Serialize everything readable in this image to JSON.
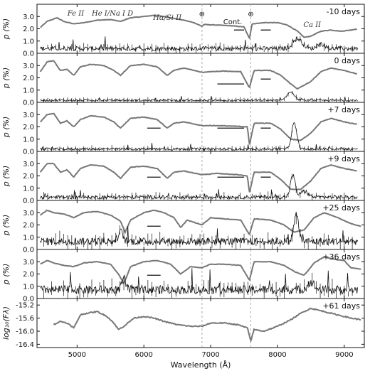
{
  "chart_data": {
    "type": "line",
    "xlabel": "Wavelength (Å)",
    "xlim": [
      4400,
      9300
    ],
    "x_ticks": [
      "5000",
      "6000",
      "7000",
      "8000",
      "9000"
    ],
    "x_tick_values": [
      5000,
      6000,
      7000,
      8000,
      9000
    ],
    "telluric_lines": [
      6870,
      7600
    ],
    "telluric_symbol": "⊕",
    "line_labels": [
      {
        "text": "Fe II",
        "x": 4980
      },
      {
        "text": "He I/Na I D",
        "x": 5530
      },
      {
        "text": "Hα/Si II",
        "x": 6350
      },
      {
        "text": "Cont.",
        "x": 7330
      },
      {
        "text": "Ca II",
        "x": 8520
      }
    ],
    "colors": {
      "flux": "#777777",
      "pol": "#111111",
      "telluric": "#aaaaaa"
    },
    "panels": [
      {
        "epoch": "-10 days",
        "ylabel": "p (%)",
        "ylim": [
          0,
          4
        ],
        "y_ticks": [
          "0.0",
          "1.0",
          "2.0",
          "3.0"
        ],
        "y_tick_values": [
          0,
          1,
          2,
          3
        ],
        "flux": [
          [
            4450,
            2.1
          ],
          [
            4550,
            2.6
          ],
          [
            4700,
            2.9
          ],
          [
            4800,
            2.6
          ],
          [
            4950,
            2.4
          ],
          [
            5100,
            2.5
          ],
          [
            5300,
            2.7
          ],
          [
            5500,
            2.75
          ],
          [
            5650,
            2.6
          ],
          [
            5800,
            2.9
          ],
          [
            6000,
            3.0
          ],
          [
            6150,
            3.1
          ],
          [
            6300,
            3.0
          ],
          [
            6450,
            2.85
          ],
          [
            6600,
            2.7
          ],
          [
            6750,
            2.5
          ],
          [
            6870,
            2.2
          ],
          [
            6900,
            2.35
          ],
          [
            7100,
            2.3
          ],
          [
            7300,
            2.25
          ],
          [
            7500,
            2.15
          ],
          [
            7580,
            1.2
          ],
          [
            7620,
            2.4
          ],
          [
            7800,
            2.5
          ],
          [
            8000,
            2.5
          ],
          [
            8150,
            2.3
          ],
          [
            8300,
            1.8
          ],
          [
            8400,
            1.3
          ],
          [
            8500,
            1.4
          ],
          [
            8650,
            1.8
          ],
          [
            8800,
            1.9
          ],
          [
            8950,
            1.8
          ],
          [
            9100,
            1.9
          ],
          [
            9200,
            2.0
          ]
        ],
        "pol_base": 0.35,
        "pol_noise": 0.35,
        "pol_peaks": [
          {
            "x": 8300,
            "h": 0.8,
            "w": 200
          },
          {
            "x": 8650,
            "h": 0.4,
            "w": 150
          }
        ],
        "cont_bands": [
          {
            "x0": 7350,
            "x1": 7500,
            "p": 1.9
          },
          {
            "x0": 7750,
            "x1": 7900,
            "p": 1.9
          }
        ]
      },
      {
        "epoch": "0 days",
        "ylabel": "p (%)",
        "ylim": [
          0,
          4
        ],
        "y_ticks": [
          "0.0",
          "1.0",
          "2.0",
          "3.0"
        ],
        "y_tick_values": [
          0,
          1,
          2,
          3
        ],
        "flux": [
          [
            4450,
            2.5
          ],
          [
            4550,
            3.3
          ],
          [
            4650,
            3.4
          ],
          [
            4750,
            2.6
          ],
          [
            4850,
            2.7
          ],
          [
            4950,
            2.2
          ],
          [
            5050,
            2.9
          ],
          [
            5200,
            3.1
          ],
          [
            5400,
            3.0
          ],
          [
            5550,
            2.6
          ],
          [
            5650,
            2.2
          ],
          [
            5800,
            3.0
          ],
          [
            6000,
            3.1
          ],
          [
            6200,
            2.9
          ],
          [
            6350,
            2.2
          ],
          [
            6450,
            2.6
          ],
          [
            6600,
            2.8
          ],
          [
            6870,
            2.45
          ],
          [
            7000,
            2.5
          ],
          [
            7200,
            2.55
          ],
          [
            7450,
            2.5
          ],
          [
            7580,
            1.2
          ],
          [
            7650,
            2.6
          ],
          [
            7900,
            2.6
          ],
          [
            8050,
            2.2
          ],
          [
            8200,
            1.5
          ],
          [
            8300,
            1.1
          ],
          [
            8500,
            1.7
          ],
          [
            8650,
            2.5
          ],
          [
            8800,
            2.8
          ],
          [
            9000,
            2.6
          ],
          [
            9200,
            2.3
          ]
        ],
        "pol_base": 0.15,
        "pol_noise": 0.15,
        "pol_peaks": [
          {
            "x": 8200,
            "h": 0.7,
            "w": 150
          }
        ],
        "cont_bands": [
          {
            "x0": 7100,
            "x1": 7500,
            "p": 1.5
          },
          {
            "x0": 7750,
            "x1": 7900,
            "p": 1.9
          }
        ]
      },
      {
        "epoch": "+7 days",
        "ylabel": "p (%)",
        "ylim": [
          0,
          4
        ],
        "y_ticks": [
          "0.0",
          "1.0",
          "2.0",
          "3.0"
        ],
        "y_tick_values": [
          0,
          1,
          2,
          3
        ],
        "flux": [
          [
            4450,
            2.4
          ],
          [
            4550,
            3.0
          ],
          [
            4650,
            3.1
          ],
          [
            4750,
            2.3
          ],
          [
            4850,
            2.5
          ],
          [
            4950,
            2.0
          ],
          [
            5050,
            2.6
          ],
          [
            5200,
            2.9
          ],
          [
            5400,
            2.8
          ],
          [
            5550,
            2.4
          ],
          [
            5650,
            1.9
          ],
          [
            5800,
            2.7
          ],
          [
            6000,
            2.8
          ],
          [
            6200,
            2.6
          ],
          [
            6350,
            1.9
          ],
          [
            6450,
            2.3
          ],
          [
            6600,
            2.4
          ],
          [
            6870,
            2.1
          ],
          [
            7100,
            2.1
          ],
          [
            7400,
            2.05
          ],
          [
            7550,
            2.0
          ],
          [
            7580,
            0.5
          ],
          [
            7650,
            2.3
          ],
          [
            7900,
            2.3
          ],
          [
            8050,
            1.8
          ],
          [
            8200,
            1.0
          ],
          [
            8350,
            0.9
          ],
          [
            8500,
            1.5
          ],
          [
            8650,
            2.4
          ],
          [
            8800,
            2.7
          ],
          [
            9000,
            2.4
          ],
          [
            9200,
            2.2
          ]
        ],
        "pol_base": 0.15,
        "pol_noise": 0.2,
        "pol_peaks": [
          {
            "x": 8250,
            "h": 2.1,
            "w": 110
          }
        ],
        "cont_bands": [
          {
            "x0": 6050,
            "x1": 6250,
            "p": 1.9
          },
          {
            "x0": 7100,
            "x1": 7500,
            "p": 1.9
          },
          {
            "x0": 7750,
            "x1": 7900,
            "p": 1.9
          }
        ]
      },
      {
        "epoch": "+9 days",
        "ylabel": "p (%)",
        "ylim": [
          0,
          4
        ],
        "y_ticks": [
          "0.0",
          "1.0",
          "2.0",
          "3.0"
        ],
        "y_tick_values": [
          0,
          1,
          2,
          3
        ],
        "flux": [
          [
            4450,
            2.3
          ],
          [
            4550,
            3.0
          ],
          [
            4650,
            3.0
          ],
          [
            4750,
            2.3
          ],
          [
            4850,
            2.5
          ],
          [
            4950,
            1.9
          ],
          [
            5050,
            2.6
          ],
          [
            5200,
            2.9
          ],
          [
            5400,
            2.8
          ],
          [
            5550,
            2.3
          ],
          [
            5650,
            1.8
          ],
          [
            5800,
            2.7
          ],
          [
            6000,
            2.8
          ],
          [
            6200,
            2.6
          ],
          [
            6350,
            1.8
          ],
          [
            6450,
            2.3
          ],
          [
            6600,
            2.4
          ],
          [
            6870,
            2.1
          ],
          [
            7100,
            2.2
          ],
          [
            7400,
            2.1
          ],
          [
            7550,
            2.0
          ],
          [
            7580,
            0.6
          ],
          [
            7650,
            2.3
          ],
          [
            7900,
            2.3
          ],
          [
            8050,
            1.7
          ],
          [
            8200,
            0.9
          ],
          [
            8350,
            0.9
          ],
          [
            8500,
            1.6
          ],
          [
            8650,
            2.6
          ],
          [
            8800,
            2.9
          ],
          [
            9000,
            2.6
          ],
          [
            9200,
            2.4
          ]
        ],
        "pol_base": 0.2,
        "pol_noise": 0.3,
        "pol_peaks": [
          {
            "x": 8230,
            "h": 1.8,
            "w": 100
          },
          {
            "x": 8400,
            "h": 0.5,
            "w": 150
          }
        ],
        "cont_bands": [
          {
            "x0": 6050,
            "x1": 6250,
            "p": 1.9
          },
          {
            "x0": 7100,
            "x1": 7500,
            "p": 1.9
          },
          {
            "x0": 7750,
            "x1": 7900,
            "p": 1.9
          }
        ]
      },
      {
        "epoch": "+25 days",
        "ylabel": "p (%)",
        "ylim": [
          0,
          4
        ],
        "y_ticks": [
          "0.0",
          "1.0",
          "2.0",
          "3.0"
        ],
        "y_tick_values": [
          0,
          1,
          2,
          3
        ],
        "flux": [
          [
            4450,
            2.8
          ],
          [
            4550,
            3.2
          ],
          [
            4650,
            3.0
          ],
          [
            4800,
            2.9
          ],
          [
            4950,
            2.6
          ],
          [
            5100,
            3.0
          ],
          [
            5300,
            3.1
          ],
          [
            5500,
            2.8
          ],
          [
            5650,
            2.3
          ],
          [
            5720,
            1.4
          ],
          [
            5800,
            2.4
          ],
          [
            6000,
            3.0
          ],
          [
            6150,
            3.2
          ],
          [
            6300,
            3.0
          ],
          [
            6450,
            2.6
          ],
          [
            6550,
            1.8
          ],
          [
            6650,
            2.4
          ],
          [
            6870,
            2.0
          ],
          [
            7000,
            2.6
          ],
          [
            7200,
            2.5
          ],
          [
            7450,
            2.4
          ],
          [
            7580,
            1.2
          ],
          [
            7650,
            2.5
          ],
          [
            7900,
            2.4
          ],
          [
            8100,
            2.0
          ],
          [
            8250,
            1.4
          ],
          [
            8400,
            1.6
          ],
          [
            8550,
            2.6
          ],
          [
            8700,
            3.0
          ],
          [
            8900,
            2.6
          ],
          [
            9100,
            2.1
          ],
          [
            9250,
            1.9
          ]
        ],
        "pol_base": 0.6,
        "pol_noise": 0.6,
        "pol_peaks": [
          {
            "x": 8280,
            "h": 2.2,
            "w": 100
          },
          {
            "x": 5650,
            "h": 0.8,
            "w": 100
          }
        ],
        "cont_bands": [
          {
            "x0": 6050,
            "x1": 6250,
            "p": 1.9
          }
        ]
      },
      {
        "epoch": "+36 days",
        "ylabel": "p (%)",
        "ylim": [
          0,
          4
        ],
        "y_ticks": [
          "0.0",
          "1.0",
          "2.0",
          "3.0"
        ],
        "y_tick_values": [
          0,
          1,
          2,
          3
        ],
        "flux": [
          [
            4450,
            2.8
          ],
          [
            4550,
            3.1
          ],
          [
            4650,
            2.9
          ],
          [
            4800,
            2.7
          ],
          [
            4950,
            2.6
          ],
          [
            5100,
            2.9
          ],
          [
            5300,
            3.0
          ],
          [
            5500,
            2.8
          ],
          [
            5620,
            2.0
          ],
          [
            5700,
            1.2
          ],
          [
            5800,
            2.6
          ],
          [
            6000,
            3.0
          ],
          [
            6200,
            3.1
          ],
          [
            6400,
            2.8
          ],
          [
            6550,
            2.0
          ],
          [
            6700,
            2.6
          ],
          [
            6870,
            2.5
          ],
          [
            7000,
            2.8
          ],
          [
            7200,
            2.8
          ],
          [
            7450,
            2.7
          ],
          [
            7580,
            1.5
          ],
          [
            7650,
            3.0
          ],
          [
            7900,
            3.0
          ],
          [
            8100,
            2.7
          ],
          [
            8250,
            2.2
          ],
          [
            8400,
            1.9
          ],
          [
            8550,
            2.9
          ],
          [
            8700,
            3.4
          ],
          [
            8850,
            3.2
          ],
          [
            9000,
            3.1
          ],
          [
            9100,
            2.5
          ],
          [
            9250,
            2.4
          ]
        ],
        "pol_base": 0.6,
        "pol_noise": 0.7,
        "pol_peaks": [
          {
            "x": 5700,
            "h": 0.9,
            "w": 80
          },
          {
            "x": 8500,
            "h": 0.6,
            "w": 150
          }
        ],
        "cont_bands": [
          {
            "x0": 6050,
            "x1": 6250,
            "p": 1.9
          }
        ]
      },
      {
        "epoch": "+61 days",
        "ylabel": "log₁₀(Fλ)",
        "ylim": [
          -16.5,
          -15.0
        ],
        "y_ticks": [
          "-16.4",
          "-16.0",
          "-15.6",
          "-15.2"
        ],
        "y_tick_values": [
          -16.4,
          -16.0,
          -15.6,
          -15.2
        ],
        "flux": [
          [
            4650,
            -15.8
          ],
          [
            4750,
            -15.7
          ],
          [
            4850,
            -15.75
          ],
          [
            4950,
            -15.9
          ],
          [
            5050,
            -15.5
          ],
          [
            5150,
            -15.45
          ],
          [
            5300,
            -15.4
          ],
          [
            5450,
            -15.55
          ],
          [
            5550,
            -15.75
          ],
          [
            5620,
            -15.95
          ],
          [
            5700,
            -15.85
          ],
          [
            5850,
            -15.6
          ],
          [
            6000,
            -15.55
          ],
          [
            6150,
            -15.6
          ],
          [
            6300,
            -15.7
          ],
          [
            6500,
            -15.8
          ],
          [
            6700,
            -15.85
          ],
          [
            6870,
            -15.85
          ],
          [
            7000,
            -15.75
          ],
          [
            7200,
            -15.75
          ],
          [
            7400,
            -15.8
          ],
          [
            7550,
            -15.9
          ],
          [
            7600,
            -16.3
          ],
          [
            7650,
            -15.95
          ],
          [
            7800,
            -16.0
          ],
          [
            8000,
            -15.85
          ],
          [
            8200,
            -15.65
          ],
          [
            8350,
            -15.45
          ],
          [
            8500,
            -15.3
          ],
          [
            8700,
            -15.4
          ],
          [
            8900,
            -15.5
          ],
          [
            9100,
            -15.6
          ],
          [
            9250,
            -15.65
          ]
        ],
        "pol_base": null,
        "pol_noise": null,
        "pol_peaks": [],
        "cont_bands": []
      }
    ]
  }
}
